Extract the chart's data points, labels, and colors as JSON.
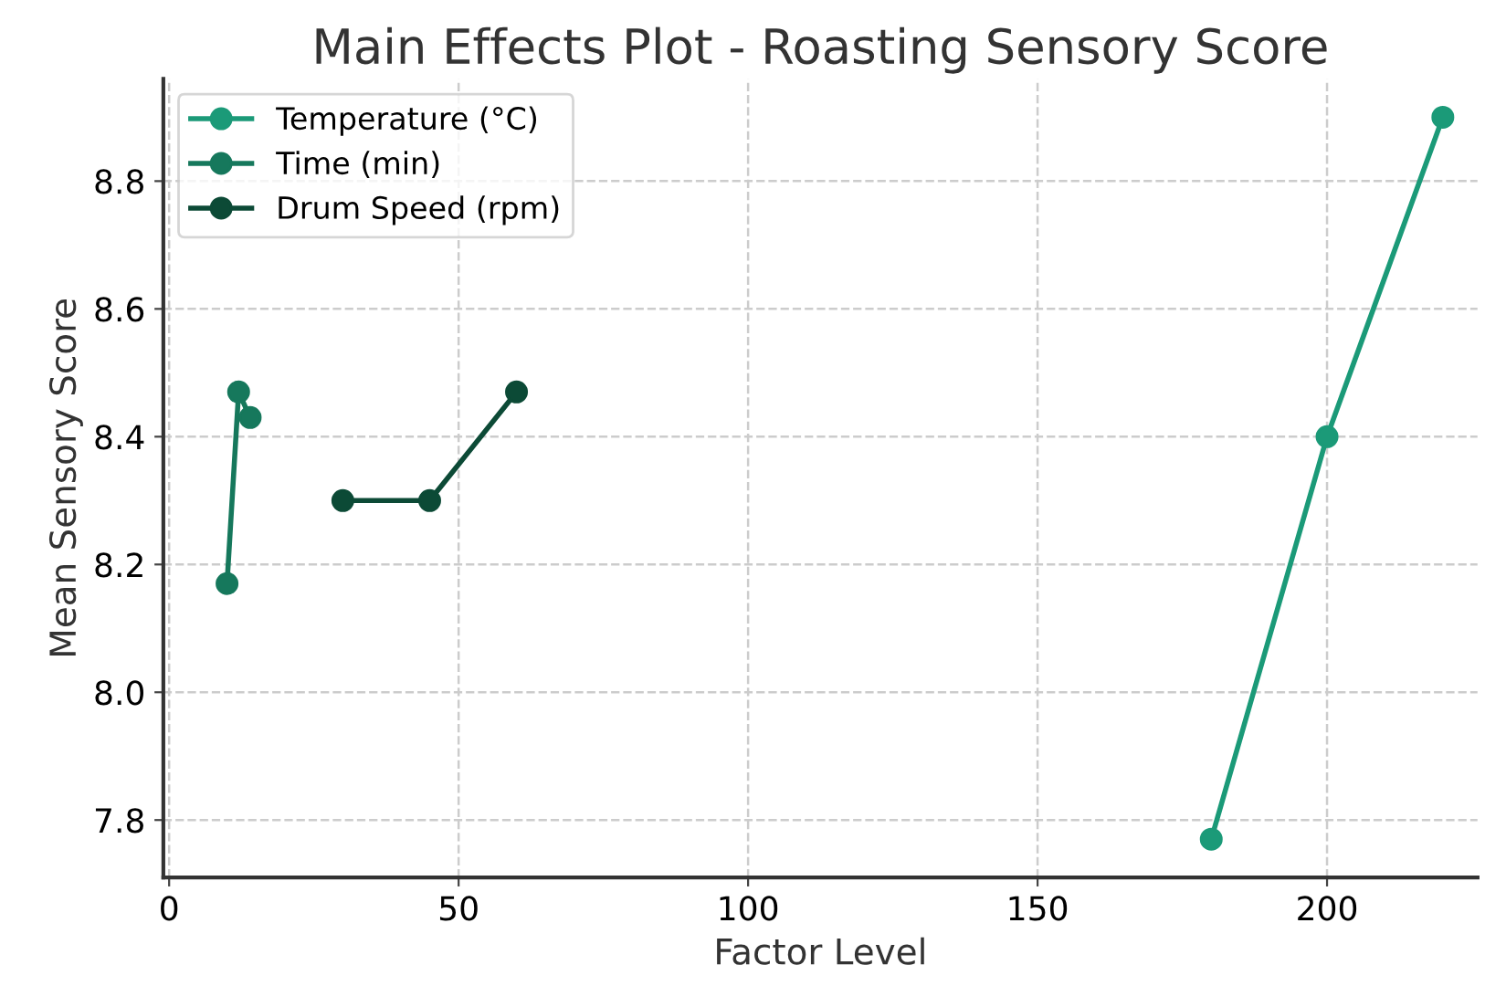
{
  "chart_data": {
    "type": "line",
    "title": "Main Effects Plot - Roasting Sensory Score",
    "xlabel": "Factor Level",
    "ylabel": "Mean Sensory Score",
    "series": [
      {
        "name": "Temperature (°C)",
        "color": "#1b9a78",
        "x": [
          180,
          200,
          220
        ],
        "values": [
          7.77,
          8.4,
          8.9
        ]
      },
      {
        "name": "Time (min)",
        "color": "#16785c",
        "x": [
          10,
          12,
          14
        ],
        "values": [
          8.17,
          8.47,
          8.43
        ]
      },
      {
        "name": "Drum Speed (rpm)",
        "color": "#0c4a36",
        "x": [
          30,
          45,
          60
        ],
        "values": [
          8.3,
          8.3,
          8.47
        ]
      }
    ],
    "xlim": [
      -1,
      226
    ],
    "xticks": [
      0,
      50,
      100,
      150,
      200
    ],
    "ylim": [
      7.71,
      8.96
    ],
    "yticks": [
      7.8,
      {
        "value": 8,
        "label": "8.0"
      },
      8.2,
      8.4,
      8.6,
      8.8
    ],
    "grid": true,
    "legend": "top left",
    "marker": "circle",
    "line_style": "solid"
  }
}
